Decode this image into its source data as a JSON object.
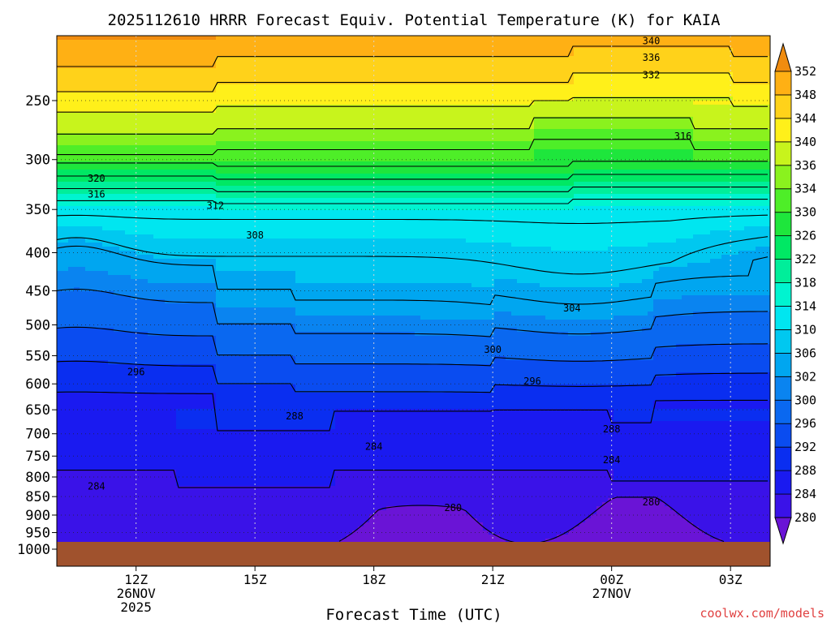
{
  "chart_data": {
    "type": "contour",
    "title": "2025112610 HRRR Forecast Equiv. Potential Temperature (K) for KAIA",
    "xlabel": "Forecast Time (UTC)",
    "ylabel": "",
    "watermark": "coolwx.com/models",
    "y_scale": "log-pressure (hPa), inverted",
    "ylim": [
      1000,
      200
    ],
    "y_ticks": [
      250,
      300,
      350,
      400,
      450,
      500,
      550,
      600,
      650,
      700,
      750,
      800,
      850,
      900,
      950,
      1000
    ],
    "x_ticks": [
      {
        "hour": 12,
        "lines": [
          "12Z",
          "26NOV",
          "2025"
        ]
      },
      {
        "hour": 15,
        "lines": [
          "15Z"
        ]
      },
      {
        "hour": 18,
        "lines": [
          "18Z"
        ]
      },
      {
        "hour": 21,
        "lines": [
          "21Z"
        ]
      },
      {
        "hour": 24,
        "lines": [
          "00Z",
          "27NOV"
        ]
      },
      {
        "hour": 27,
        "lines": [
          "03Z"
        ]
      }
    ],
    "xlim_hours": [
      10,
      28
    ],
    "grid": "dotted",
    "colorbar": {
      "levels": [
        280,
        284,
        288,
        292,
        296,
        300,
        302,
        306,
        310,
        314,
        318,
        322,
        326,
        330,
        334,
        336,
        340,
        344,
        348,
        352
      ],
      "colors": [
        "#6a14d6",
        "#3a12e8",
        "#1a1af0",
        "#0a2ef0",
        "#0a4cf0",
        "#0a68f0",
        "#0a84f0",
        "#00a6f0",
        "#00c8f0",
        "#00e6f0",
        "#00f4d0",
        "#00ee9a",
        "#00e864",
        "#1ee63c",
        "#4eee28",
        "#8af21e",
        "#c8f41c",
        "#fff01a",
        "#ffd21a",
        "#ffb014",
        "#f08c10"
      ],
      "extends": "both"
    },
    "contour_labels": [
      {
        "value": "340",
        "x_hour": 25.0,
        "p": 208
      },
      {
        "value": "336",
        "x_hour": 25.0,
        "p": 219
      },
      {
        "value": "332",
        "x_hour": 25.0,
        "p": 231
      },
      {
        "value": "316",
        "x_hour": 25.8,
        "p": 279
      },
      {
        "value": "320",
        "x_hour": 11.0,
        "p": 318
      },
      {
        "value": "316",
        "x_hour": 11.0,
        "p": 334
      },
      {
        "value": "312",
        "x_hour": 14.0,
        "p": 346
      },
      {
        "value": "308",
        "x_hour": 15.0,
        "p": 379
      },
      {
        "value": "304",
        "x_hour": 23.0,
        "p": 475
      },
      {
        "value": "300",
        "x_hour": 21.0,
        "p": 540
      },
      {
        "value": "296",
        "x_hour": 12.0,
        "p": 578
      },
      {
        "value": "296",
        "x_hour": 22.0,
        "p": 595
      },
      {
        "value": "288",
        "x_hour": 16.0,
        "p": 663
      },
      {
        "value": "288",
        "x_hour": 24.0,
        "p": 690
      },
      {
        "value": "284",
        "x_hour": 18.0,
        "p": 728
      },
      {
        "value": "284",
        "x_hour": 24.0,
        "p": 759
      },
      {
        "value": "284",
        "x_hour": 11.0,
        "p": 823
      },
      {
        "value": "280",
        "x_hour": 20.0,
        "p": 880
      },
      {
        "value": "280",
        "x_hour": 25.0,
        "p": 865
      }
    ]
  }
}
